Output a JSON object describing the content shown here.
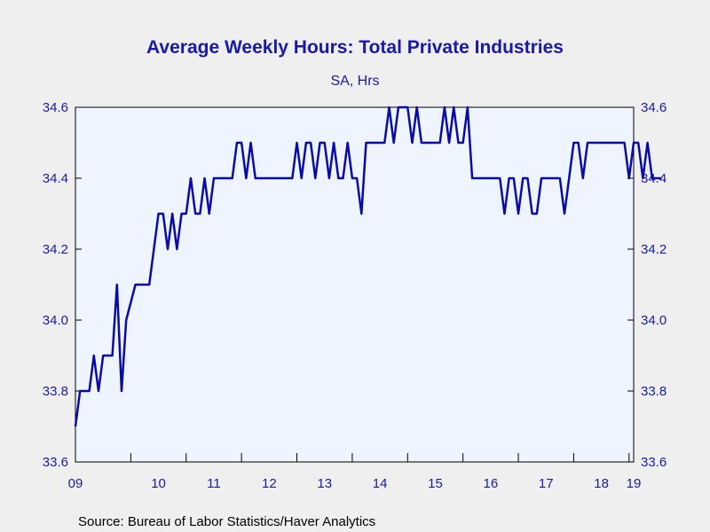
{
  "chart_data": {
    "type": "line",
    "title": "Average Weekly Hours: Total Private Industries",
    "subtitle": "SA, Hrs",
    "source": "Source:  Bureau of Labor Statistics/Haver Analytics",
    "ylim": [
      33.6,
      34.6
    ],
    "y_ticks": [
      "34.6",
      "34.4",
      "34.2",
      "34.0",
      "33.8",
      "33.6"
    ],
    "x_tick_labels": [
      "09",
      "10",
      "11",
      "12",
      "13",
      "14",
      "15",
      "16",
      "17",
      "18",
      "19"
    ],
    "x_start": "2009-01",
    "x_end": "2019-02",
    "grid": false,
    "colors": {
      "line": "#0a0aa8",
      "text": "#1a1aaa",
      "plot_bg": "#eef5ff"
    },
    "series": [
      {
        "frequency": "monthly",
        "values": [
          33.7,
          33.8,
          33.8,
          33.8,
          33.9,
          33.8,
          33.9,
          33.9,
          33.9,
          34.1,
          33.8,
          34.0,
          34.05,
          34.1,
          34.1,
          34.1,
          34.1,
          34.2,
          34.3,
          34.3,
          34.2,
          34.3,
          34.2,
          34.3,
          34.3,
          34.4,
          34.3,
          34.3,
          34.4,
          34.3,
          34.4,
          34.4,
          34.4,
          34.4,
          34.4,
          34.5,
          34.5,
          34.4,
          34.5,
          34.4,
          34.4,
          34.4,
          34.4,
          34.4,
          34.4,
          34.4,
          34.4,
          34.4,
          34.5,
          34.4,
          34.5,
          34.5,
          34.4,
          34.5,
          34.5,
          34.4,
          34.5,
          34.4,
          34.4,
          34.5,
          34.4,
          34.4,
          34.3,
          34.5,
          34.5,
          34.5,
          34.5,
          34.5,
          34.6,
          34.5,
          34.6,
          34.6,
          34.6,
          34.5,
          34.6,
          34.5,
          34.5,
          34.5,
          34.5,
          34.5,
          34.6,
          34.5,
          34.6,
          34.5,
          34.5,
          34.6,
          34.4,
          34.4,
          34.4,
          34.4,
          34.4,
          34.4,
          34.4,
          34.3,
          34.4,
          34.4,
          34.3,
          34.4,
          34.4,
          34.3,
          34.3,
          34.4,
          34.4,
          34.4,
          34.4,
          34.4,
          34.3,
          34.4,
          34.5,
          34.5,
          34.4,
          34.5,
          34.5,
          34.5,
          34.5,
          34.5,
          34.5,
          34.5,
          34.5,
          34.5,
          34.4,
          34.5,
          34.5,
          34.4,
          34.5,
          34.4,
          34.4,
          34.4
        ]
      }
    ]
  }
}
